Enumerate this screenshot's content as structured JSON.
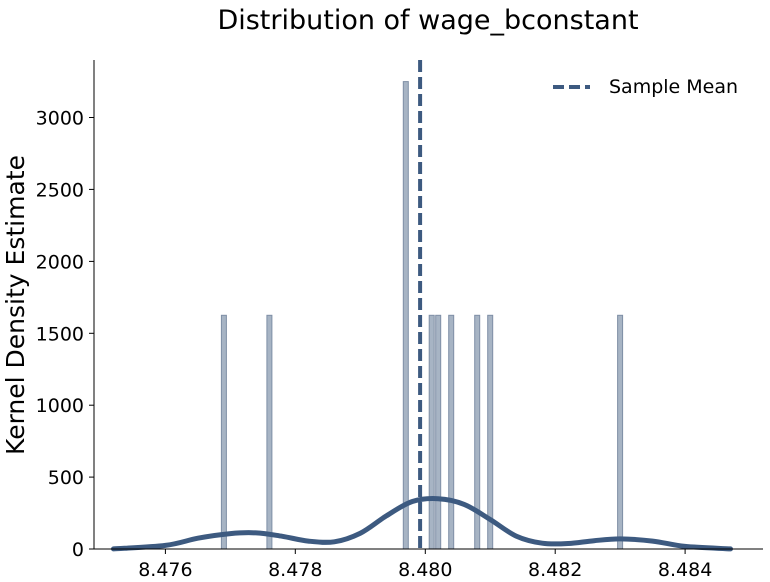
{
  "chart_data": {
    "type": "bar",
    "title": "Distribution of wage_bconstant",
    "xlabel": "",
    "ylabel": "Kernel Density Estimate",
    "xlim": [
      8.4749,
      8.4852
    ],
    "ylim": [
      0,
      3400
    ],
    "xticks": [
      "8.476",
      "8.478",
      "8.480",
      "8.482",
      "8.484"
    ],
    "yticks": [
      "0",
      "500",
      "1000",
      "1500",
      "2000",
      "2500",
      "3000"
    ],
    "grid": false,
    "legend": {
      "position": "top-right",
      "entries": [
        "Sample Mean"
      ]
    },
    "colors": {
      "bars_fill": "#a7b4c4",
      "bars_stroke": "#7f8fa6",
      "kde": "#3d5a80",
      "mean_line": "#3d5a80"
    },
    "histogram": {
      "bin_width": 5e-05,
      "bars": [
        {
          "x": 8.4769,
          "density": 1625
        },
        {
          "x": 8.4776,
          "density": 1625
        },
        {
          "x": 8.4797,
          "density": 3250
        },
        {
          "x": 8.4801,
          "density": 1625
        },
        {
          "x": 8.4802,
          "density": 1625
        },
        {
          "x": 8.4804,
          "density": 1625
        },
        {
          "x": 8.4808,
          "density": 1625
        },
        {
          "x": 8.481,
          "density": 1625
        },
        {
          "x": 8.483,
          "density": 1625
        }
      ]
    },
    "kde": {
      "name": "",
      "x": [
        8.4752,
        8.476,
        8.4765,
        8.477,
        8.4774,
        8.4778,
        8.4782,
        8.4786,
        8.479,
        8.4794,
        8.4798,
        8.4802,
        8.4806,
        8.481,
        8.4814,
        8.4818,
        8.4822,
        8.4826,
        8.483,
        8.4835,
        8.484,
        8.4847
      ],
      "y": [
        1,
        25,
        75,
        107,
        112,
        88,
        55,
        50,
        110,
        230,
        330,
        350,
        310,
        205,
        90,
        40,
        38,
        58,
        70,
        55,
        18,
        1
      ]
    },
    "sample_mean": 8.47992
  }
}
